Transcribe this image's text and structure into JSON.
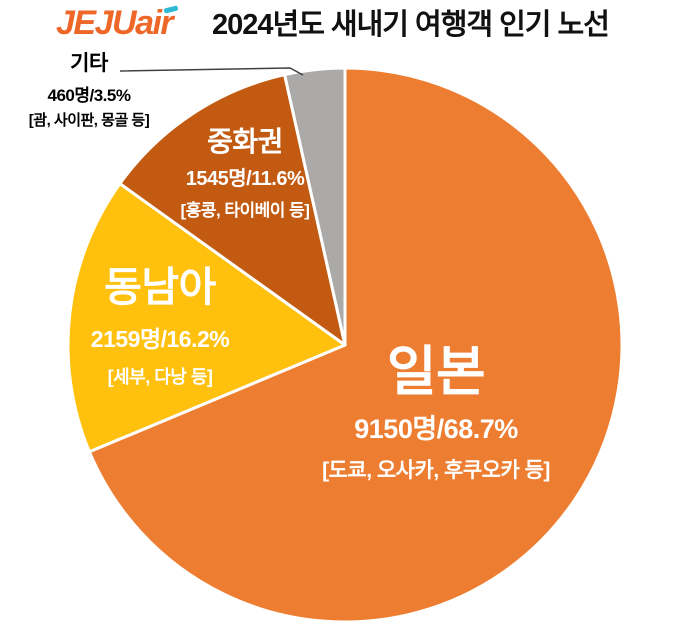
{
  "header": {
    "logo_jeju": "JEJU",
    "logo_air": "air",
    "logo_color": "#EE6628",
    "logo_accent_color": "#2FB9D4",
    "title": "2024년도 새내기 여행객 인기 노선"
  },
  "chart_data": {
    "type": "pie",
    "title": "2024년도 새내기 여행객 인기 노선",
    "unit": "명",
    "direction": "clockwise",
    "start_angle_deg": 0,
    "legend_position": "labels-on-slices",
    "slices": [
      {
        "id": "japan",
        "label": "일본",
        "passengers": 9150,
        "percent": 68.7,
        "value_text": "9150명/68.7%",
        "examples": "[도쿄, 오사카, 후쿠오카 등]",
        "color": "#ED7D31",
        "text_color": "#FFFFFF"
      },
      {
        "id": "southeast-asia",
        "label": "동남아",
        "passengers": 2159,
        "percent": 16.2,
        "value_text": "2159명/16.2%",
        "examples": "[세부, 다낭 등]",
        "color": "#FFC10E",
        "text_color": "#FFFFFF"
      },
      {
        "id": "greater-china",
        "label": "중화권",
        "passengers": 1545,
        "percent": 11.6,
        "value_text": "1545명/11.6%",
        "examples": "[홍콩, 타이베이 등]",
        "color": "#C25A11",
        "text_color": "#FFFFFF"
      },
      {
        "id": "etc",
        "label": "기타",
        "passengers": 460,
        "percent": 3.5,
        "value_text": "460명/3.5%",
        "examples": "[괌, 사이판, 몽골 등]",
        "color": "#ABAAA8",
        "text_color": "#000000"
      }
    ]
  }
}
